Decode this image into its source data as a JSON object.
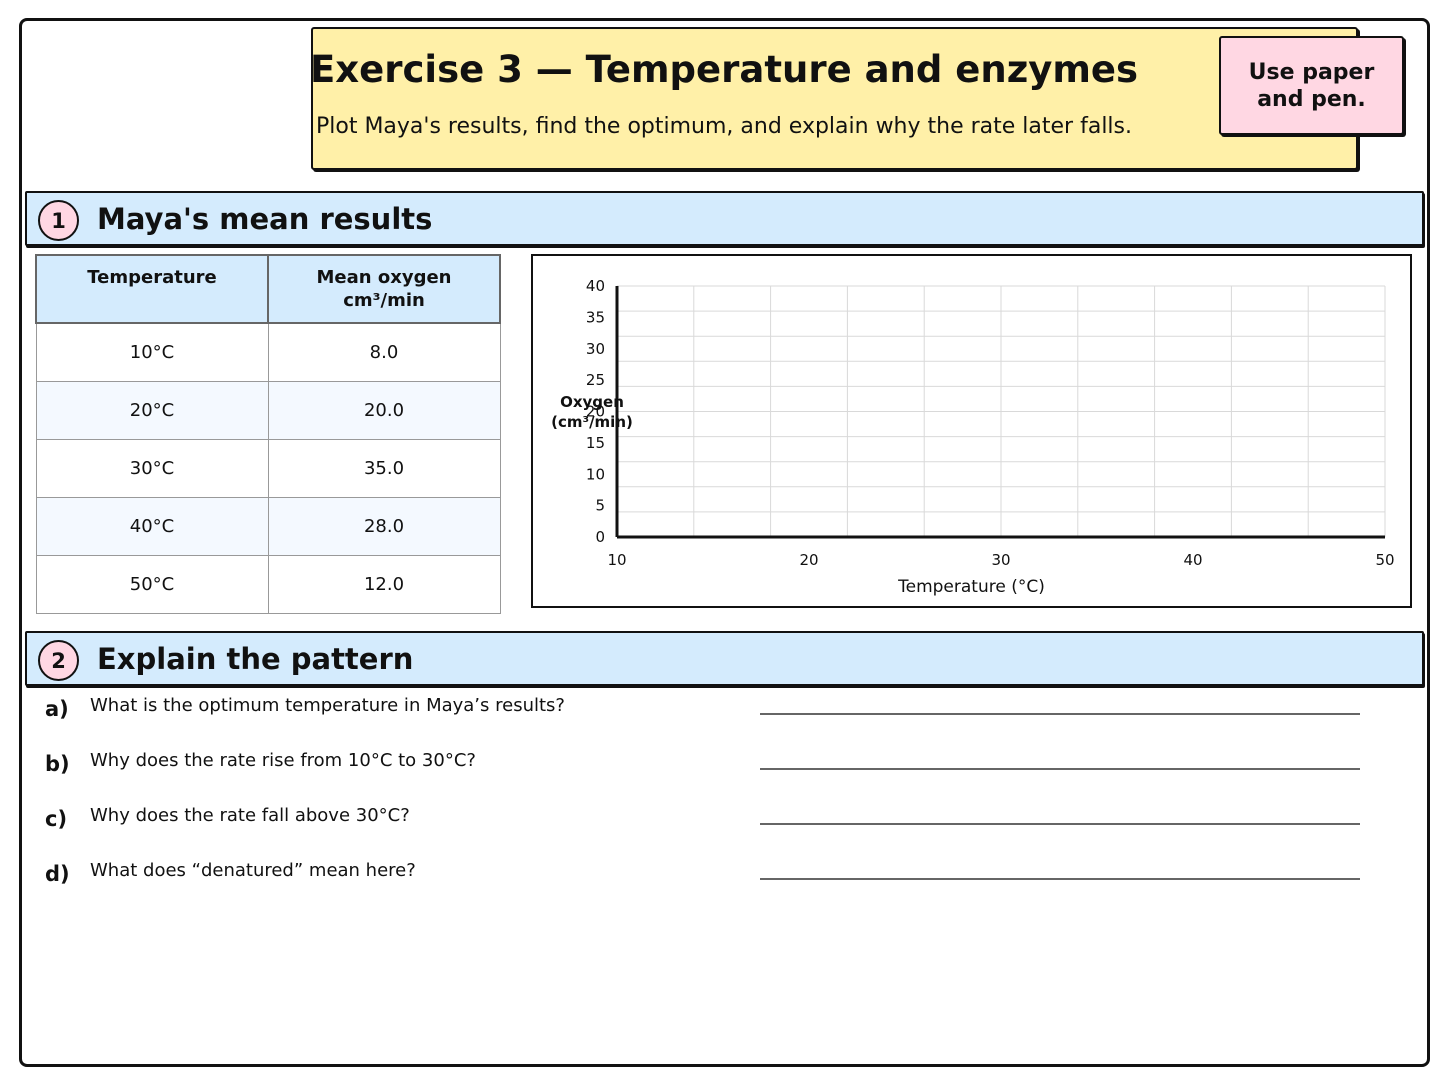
{
  "header": {
    "title": "Exercise 3 — Temperature and enzymes",
    "subtitle": "Plot Maya's results, find the optimum, and explain why the rate later falls.",
    "callout": "Use paper\nand pen."
  },
  "sections": [
    {
      "number": "1",
      "title": "Maya's mean results"
    },
    {
      "number": "2",
      "title": "Explain the pattern"
    }
  ],
  "table": {
    "headers": [
      "Temperature",
      "Mean oxygen\ncm³/min"
    ],
    "rows": [
      [
        "10°C",
        "8.0"
      ],
      [
        "20°C",
        "20.0"
      ],
      [
        "30°C",
        "35.0"
      ],
      [
        "40°C",
        "28.0"
      ],
      [
        "50°C",
        "12.0"
      ]
    ]
  },
  "chart_data": {
    "type": "scatter",
    "x": [],
    "y": [],
    "xlabel": "Temperature (°C)",
    "ylabel": "Oxygen\n(cm³/min)",
    "xlim": [
      10,
      50
    ],
    "ylim": [
      0,
      40
    ],
    "x_ticks": [
      10,
      20,
      30,
      40,
      50
    ],
    "y_ticks": [
      0,
      5,
      10,
      15,
      20,
      25,
      30,
      35,
      40
    ],
    "grid": true
  },
  "questions": [
    {
      "letter": "a)",
      "text": "What is the optimum temperature in Maya’s results?"
    },
    {
      "letter": "b)",
      "text": "Why does the rate rise from 10°C to 30°C?"
    },
    {
      "letter": "c)",
      "text": "Why does the rate fall above 30°C?"
    },
    {
      "letter": "d)",
      "text": "What does “denatured” mean here?"
    }
  ],
  "colors": {
    "title_panel": "#fff0a8",
    "section_fill": "#d4ebfd",
    "badge_fill": "#ffd7e3",
    "grid": "#d9d9d9",
    "ink": "#111111"
  }
}
